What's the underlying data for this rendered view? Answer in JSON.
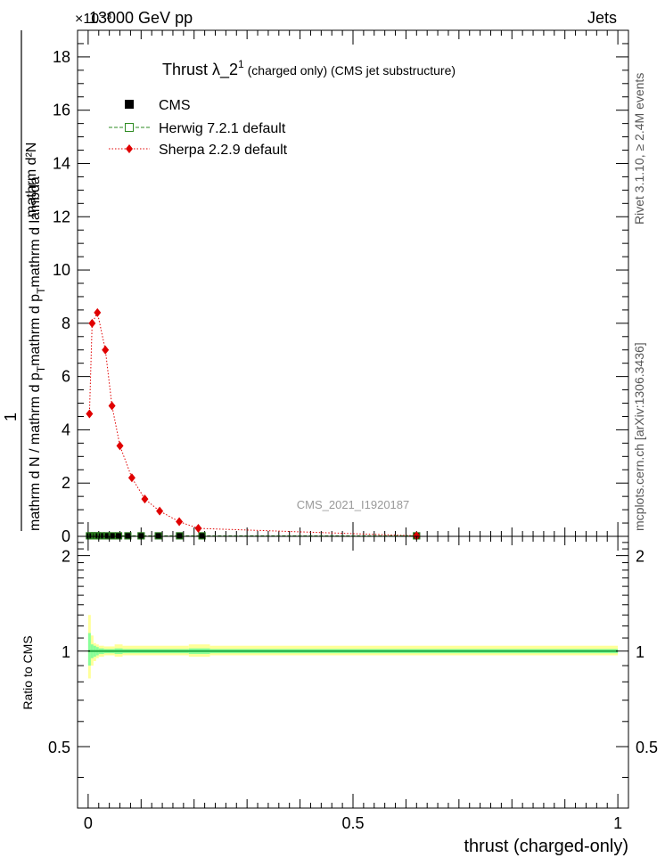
{
  "header": {
    "energy": "13000 GeV pp",
    "exponent": "×10⁻³",
    "process": "Jets"
  },
  "side": {
    "rivet": "Rivet 3.1.10, ≥ 2.4M events",
    "mcplots": "mcplots.cern.ch [arXiv:1306.3436]"
  },
  "watermark": "CMS_2021_I1920187",
  "chart_data": [
    {
      "type": "line",
      "title": "Thrust λ_2¹ (charged only) (CMS jet substructure)",
      "title_main": "Thrust ",
      "title_lambda": "λ_2",
      "title_sup": "1",
      "title_rest": " (charged only) (CMS jet substructure)",
      "ylabel_numerator": "1",
      "ylabel_denominator": "mathrm d N / mathrm d p_T mathrm d p_T mathrm d lambda",
      "ylabel_top": "mathrm d²N",
      "ylabel_bottom": "mathrm d N / mathrm d p",
      "ylabel_t": "T",
      "ylabel_mid": "mathrm d p",
      "ylabel_t2": "T",
      "ylabel_end": "mathrm d lambda",
      "xlim": [
        -0.02,
        1.02
      ],
      "ylim": [
        0,
        19
      ],
      "ytick_values": [
        0,
        2,
        4,
        6,
        8,
        10,
        12,
        14,
        16,
        18
      ],
      "ytick_labels": [
        "0",
        "2",
        "4",
        "6",
        "8",
        "10",
        "12",
        "14",
        "16",
        "18"
      ],
      "legend_position": "top-left",
      "legend": [
        {
          "name": "CMS",
          "color": "#000000",
          "marker": "square"
        },
        {
          "name": "Herwig 7.2.1 default",
          "color": "#2e8b22",
          "marker": "open-square"
        },
        {
          "name": "Sherpa 2.2.9 default",
          "color": "#e00000",
          "marker": "diamond"
        }
      ],
      "series": [
        {
          "name": "CMS",
          "x": [
            0.0025,
            0.0075,
            0.0125,
            0.0175,
            0.025,
            0.035,
            0.045,
            0.0575,
            0.075,
            0.1,
            0.1325,
            0.1725,
            0.215,
            0.62
          ],
          "y": [
            0.02,
            0.02,
            0.02,
            0.02,
            0.02,
            0.02,
            0.02,
            0.02,
            0.02,
            0.02,
            0.02,
            0.02,
            0.02,
            0.02
          ]
        },
        {
          "name": "Herwig 7.2.1 default",
          "x": [
            0.0025,
            0.0075,
            0.0125,
            0.0175,
            0.025,
            0.035,
            0.045,
            0.0575,
            0.075,
            0.1,
            0.1325,
            0.1725,
            0.215,
            0.62
          ],
          "y": [
            0.02,
            0.02,
            0.02,
            0.02,
            0.02,
            0.02,
            0.02,
            0.02,
            0.02,
            0.02,
            0.02,
            0.02,
            0.02,
            0.02
          ]
        },
        {
          "name": "Sherpa 2.2.9 default",
          "x": [
            0.0025,
            0.0075,
            0.0175,
            0.0325,
            0.045,
            0.06,
            0.0825,
            0.107,
            0.135,
            0.172,
            0.208,
            0.62
          ],
          "y": [
            4.6,
            8.0,
            8.4,
            7.0,
            4.9,
            3.4,
            2.2,
            1.4,
            0.95,
            0.55,
            0.3,
            0.02
          ]
        }
      ]
    },
    {
      "type": "line",
      "title": "",
      "ylabel": "Ratio to CMS",
      "xlabel": "thrust (charged-only)",
      "xlim": [
        -0.02,
        1.02
      ],
      "ylim": [
        0.32,
        2.3
      ],
      "xtick_values": [
        0,
        0.5,
        1
      ],
      "xtick_labels": [
        "0",
        "0.5",
        "1"
      ],
      "ytick_values": [
        0.5,
        1,
        2
      ],
      "ytick_labels": [
        "0.5",
        "1",
        "2"
      ],
      "band_colors": {
        "outer": "#ffff99",
        "inner": "#88ff99",
        "line": "#22aa44"
      },
      "bands": [
        {
          "x0": 0.0,
          "x1": 0.005,
          "outer": [
            0.82,
            1.3
          ],
          "inner": [
            0.9,
            1.14
          ]
        },
        {
          "x0": 0.005,
          "x1": 0.01,
          "outer": [
            0.9,
            1.12
          ],
          "inner": [
            0.95,
            1.05
          ]
        },
        {
          "x0": 0.01,
          "x1": 0.015,
          "outer": [
            0.93,
            1.06
          ],
          "inner": [
            0.96,
            1.04
          ]
        },
        {
          "x0": 0.015,
          "x1": 0.02,
          "outer": [
            0.95,
            1.05
          ],
          "inner": [
            0.97,
            1.03
          ]
        },
        {
          "x0": 0.02,
          "x1": 0.03,
          "outer": [
            0.96,
            1.04
          ],
          "inner": [
            0.98,
            1.02
          ]
        },
        {
          "x0": 0.03,
          "x1": 0.05,
          "outer": [
            0.97,
            1.035
          ],
          "inner": [
            0.985,
            1.015
          ]
        },
        {
          "x0": 0.05,
          "x1": 0.065,
          "outer": [
            0.96,
            1.05
          ],
          "inner": [
            0.98,
            1.02
          ]
        },
        {
          "x0": 0.065,
          "x1": 0.19,
          "outer": [
            0.97,
            1.04
          ],
          "inner": [
            0.985,
            1.015
          ]
        },
        {
          "x0": 0.19,
          "x1": 0.23,
          "outer": [
            0.96,
            1.05
          ],
          "inner": [
            0.98,
            1.02
          ]
        },
        {
          "x0": 0.23,
          "x1": 1.0,
          "outer": [
            0.97,
            1.04
          ],
          "inner": [
            0.985,
            1.015
          ]
        }
      ]
    }
  ]
}
